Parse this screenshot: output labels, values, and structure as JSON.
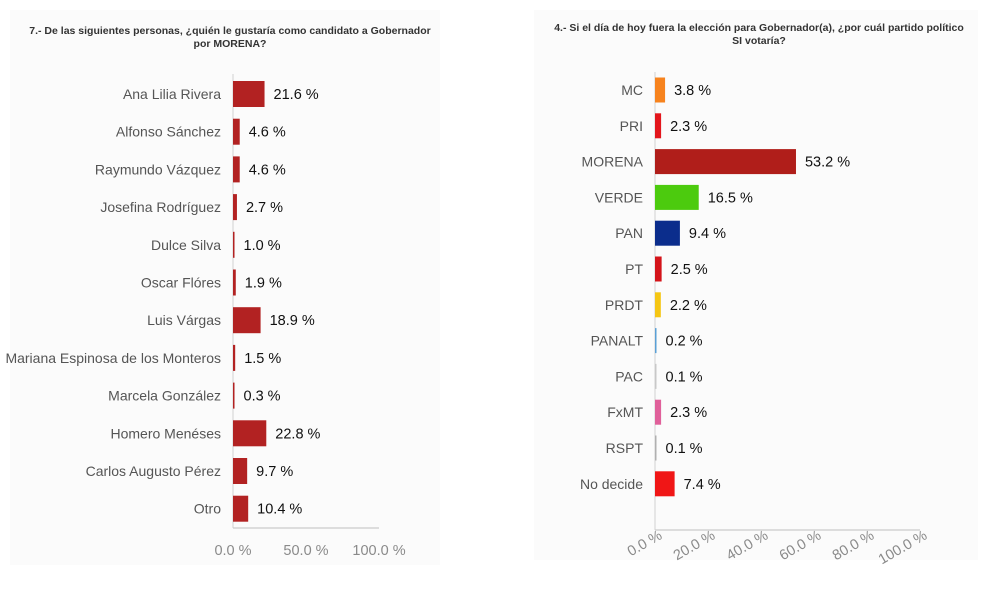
{
  "chart_data": [
    {
      "type": "bar",
      "orientation": "horizontal",
      "title_prefix": "7.- De las siguientes personas, ",
      "title_emphasis": "¿quién le gustaría como candidato a Gobernador por MORENA?",
      "categories": [
        "Ana Lilia Rivera",
        "Alfonso Sánchez",
        "Raymundo Vázquez",
        "Josefina Rodríguez",
        "Dulce Silva",
        "Oscar Flóres",
        "Luis Várgas",
        "Mariana Espinosa de los Monteros",
        "Marcela González",
        "Homero Menéses",
        "Carlos Augusto Pérez",
        "Otro"
      ],
      "values": [
        21.6,
        4.6,
        4.6,
        2.7,
        1.0,
        1.9,
        18.9,
        1.5,
        0.3,
        22.8,
        9.7,
        10.4
      ],
      "value_labels": [
        "21.6 %",
        "4.6 %",
        "4.6 %",
        "2.7 %",
        "1.0 %",
        "1.9 %",
        "18.9 %",
        "1.5 %",
        "0.3 %",
        "22.8 %",
        "9.7 %",
        "10.4 %"
      ],
      "bar_color": "#b22222",
      "xlim": [
        0,
        100
      ],
      "xticks": [
        0,
        50,
        100
      ],
      "xtick_labels": [
        "0.0 %",
        "50.0 %",
        "100.0 %"
      ],
      "grid": false
    },
    {
      "type": "bar",
      "orientation": "horizontal",
      "title_prefix": "4.- Si el día de hoy fuera la elección para Gobernador(a), ",
      "title_emphasis": "¿por cuál partido político SI votaría?",
      "categories": [
        "MC",
        "PRI",
        "MORENA",
        "VERDE",
        "PAN",
        "PT",
        "PRDT",
        "PANALT",
        "PAC",
        "FxMT",
        "RSPT",
        "No decide"
      ],
      "values": [
        3.8,
        2.3,
        53.2,
        16.5,
        9.4,
        2.5,
        2.2,
        0.2,
        0.1,
        2.3,
        0.1,
        7.4
      ],
      "value_labels": [
        "3.8 %",
        "2.3 %",
        "53.2 %",
        "16.5 %",
        "9.4 %",
        "2.5 %",
        "2.2 %",
        "0.2 %",
        "0.1 %",
        "2.3 %",
        "0.1 %",
        "7.4 %"
      ],
      "colors": [
        "#f7831e",
        "#e3161c",
        "#b01e1a",
        "#4ccb0e",
        "#0b2d8c",
        "#d4141a",
        "#f5c614",
        "#5aa0d6",
        "#c8c8c8",
        "#e0609a",
        "#b0b0b0",
        "#f01616"
      ],
      "xlim": [
        0,
        100
      ],
      "xticks": [
        0,
        20,
        40,
        60,
        80,
        100
      ],
      "xtick_labels": [
        "0.0 %",
        "20.0 %",
        "40.0 %",
        "60.0 %",
        "80.0 %",
        "100.0 %"
      ],
      "xtick_rotation_deg": -30,
      "grid": false
    }
  ]
}
